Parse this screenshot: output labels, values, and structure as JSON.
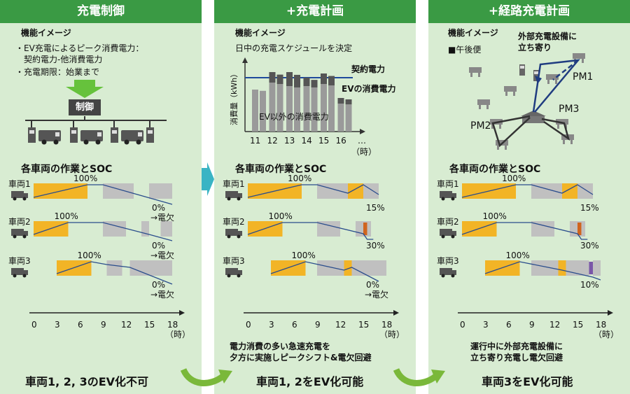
{
  "panels": [
    {
      "header": "充電制御",
      "concept_title": "機能イメージ",
      "bullets": [
        "・EV充電によるピーク消費電力：",
        "　契約電力-他消費電力",
        "・充電期限：始業まで"
      ],
      "control_label": "制御",
      "soc_title": "各車両の作業とSOC",
      "vehicles": [
        {
          "label": "車両1",
          "peak": "100%",
          "end": "0%",
          "note": "→電欠"
        },
        {
          "label": "車両2",
          "peak": "100%",
          "end": "0%",
          "note": "→電欠"
        },
        {
          "label": "車両3",
          "peak": "100%",
          "end": "0%",
          "note": "→電欠"
        }
      ],
      "footer": "車両1, 2, 3のEV化不可"
    },
    {
      "header": "+充電計画",
      "concept_title": "機能イメージ",
      "concept_sub": "日中の充電スケジュールを決定",
      "chart_labels": {
        "contract": "契約電力",
        "ev": "EVの消費電力",
        "other": "EV以外の消費電力",
        "ylabel": "消費量（kWh）",
        "xunit": "（時）",
        "ellipsis": "…"
      },
      "soc_title": "各車両の作業とSOC",
      "vehicles": [
        {
          "label": "車両1",
          "peak": "100%",
          "end": "15%"
        },
        {
          "label": "車両2",
          "peak": "100%",
          "end": "30%"
        },
        {
          "label": "車両3",
          "peak": "100%",
          "end": "0%",
          "note": "→電欠"
        }
      ],
      "note": [
        "電力消費の多い急速充電を",
        "夕方に実施しピークシフト&電欠回避"
      ],
      "footer": "車両1, 2をEV化可能"
    },
    {
      "header": "+経路充電計画",
      "concept_title": "機能イメージ",
      "concept_sub": "■午後便",
      "ext_label": [
        "外部充電設備に",
        "立ち寄り"
      ],
      "pm_labels": [
        "PM1",
        "PM2",
        "PM3"
      ],
      "soc_title": "各車両の作業とSOC",
      "vehicles": [
        {
          "label": "車両1",
          "peak": "100%",
          "end": "15%"
        },
        {
          "label": "車両2",
          "peak": "100%",
          "end": "30%"
        },
        {
          "label": "車両3",
          "peak": "100%",
          "end": "10%"
        }
      ],
      "note": [
        "運行中に外部充電設備に",
        "立ち寄り充電し電欠回避"
      ],
      "footer": "車両3をEV化可能"
    }
  ],
  "axis": {
    "ticks": [
      "0",
      "3",
      "6",
      "9",
      "12",
      "15",
      "18"
    ],
    "unit": "（時）"
  },
  "chart_data": {
    "type": "bar",
    "categories": [
      "11",
      "12",
      "13",
      "14",
      "15",
      "16"
    ],
    "series": [
      {
        "name": "EV以外の消費電力",
        "values": [
          6,
          7,
          6.5,
          6.5,
          6.8,
          4
        ]
      },
      {
        "name": "EVの消費電力",
        "values": [
          0,
          1.5,
          2,
          1.2,
          1.5,
          0.8
        ]
      }
    ],
    "contract_line": 7.7,
    "ylabel": "消費量（kWh）",
    "xlabel": "（時）"
  },
  "colors": {
    "header": "#3a9a44",
    "panel": "#d8ecd2",
    "charge": "#f2b426",
    "work": "#c0c0c0",
    "fast": "#d0641e",
    "ext": "#7a56a8",
    "soc": "#2a4d8c"
  }
}
